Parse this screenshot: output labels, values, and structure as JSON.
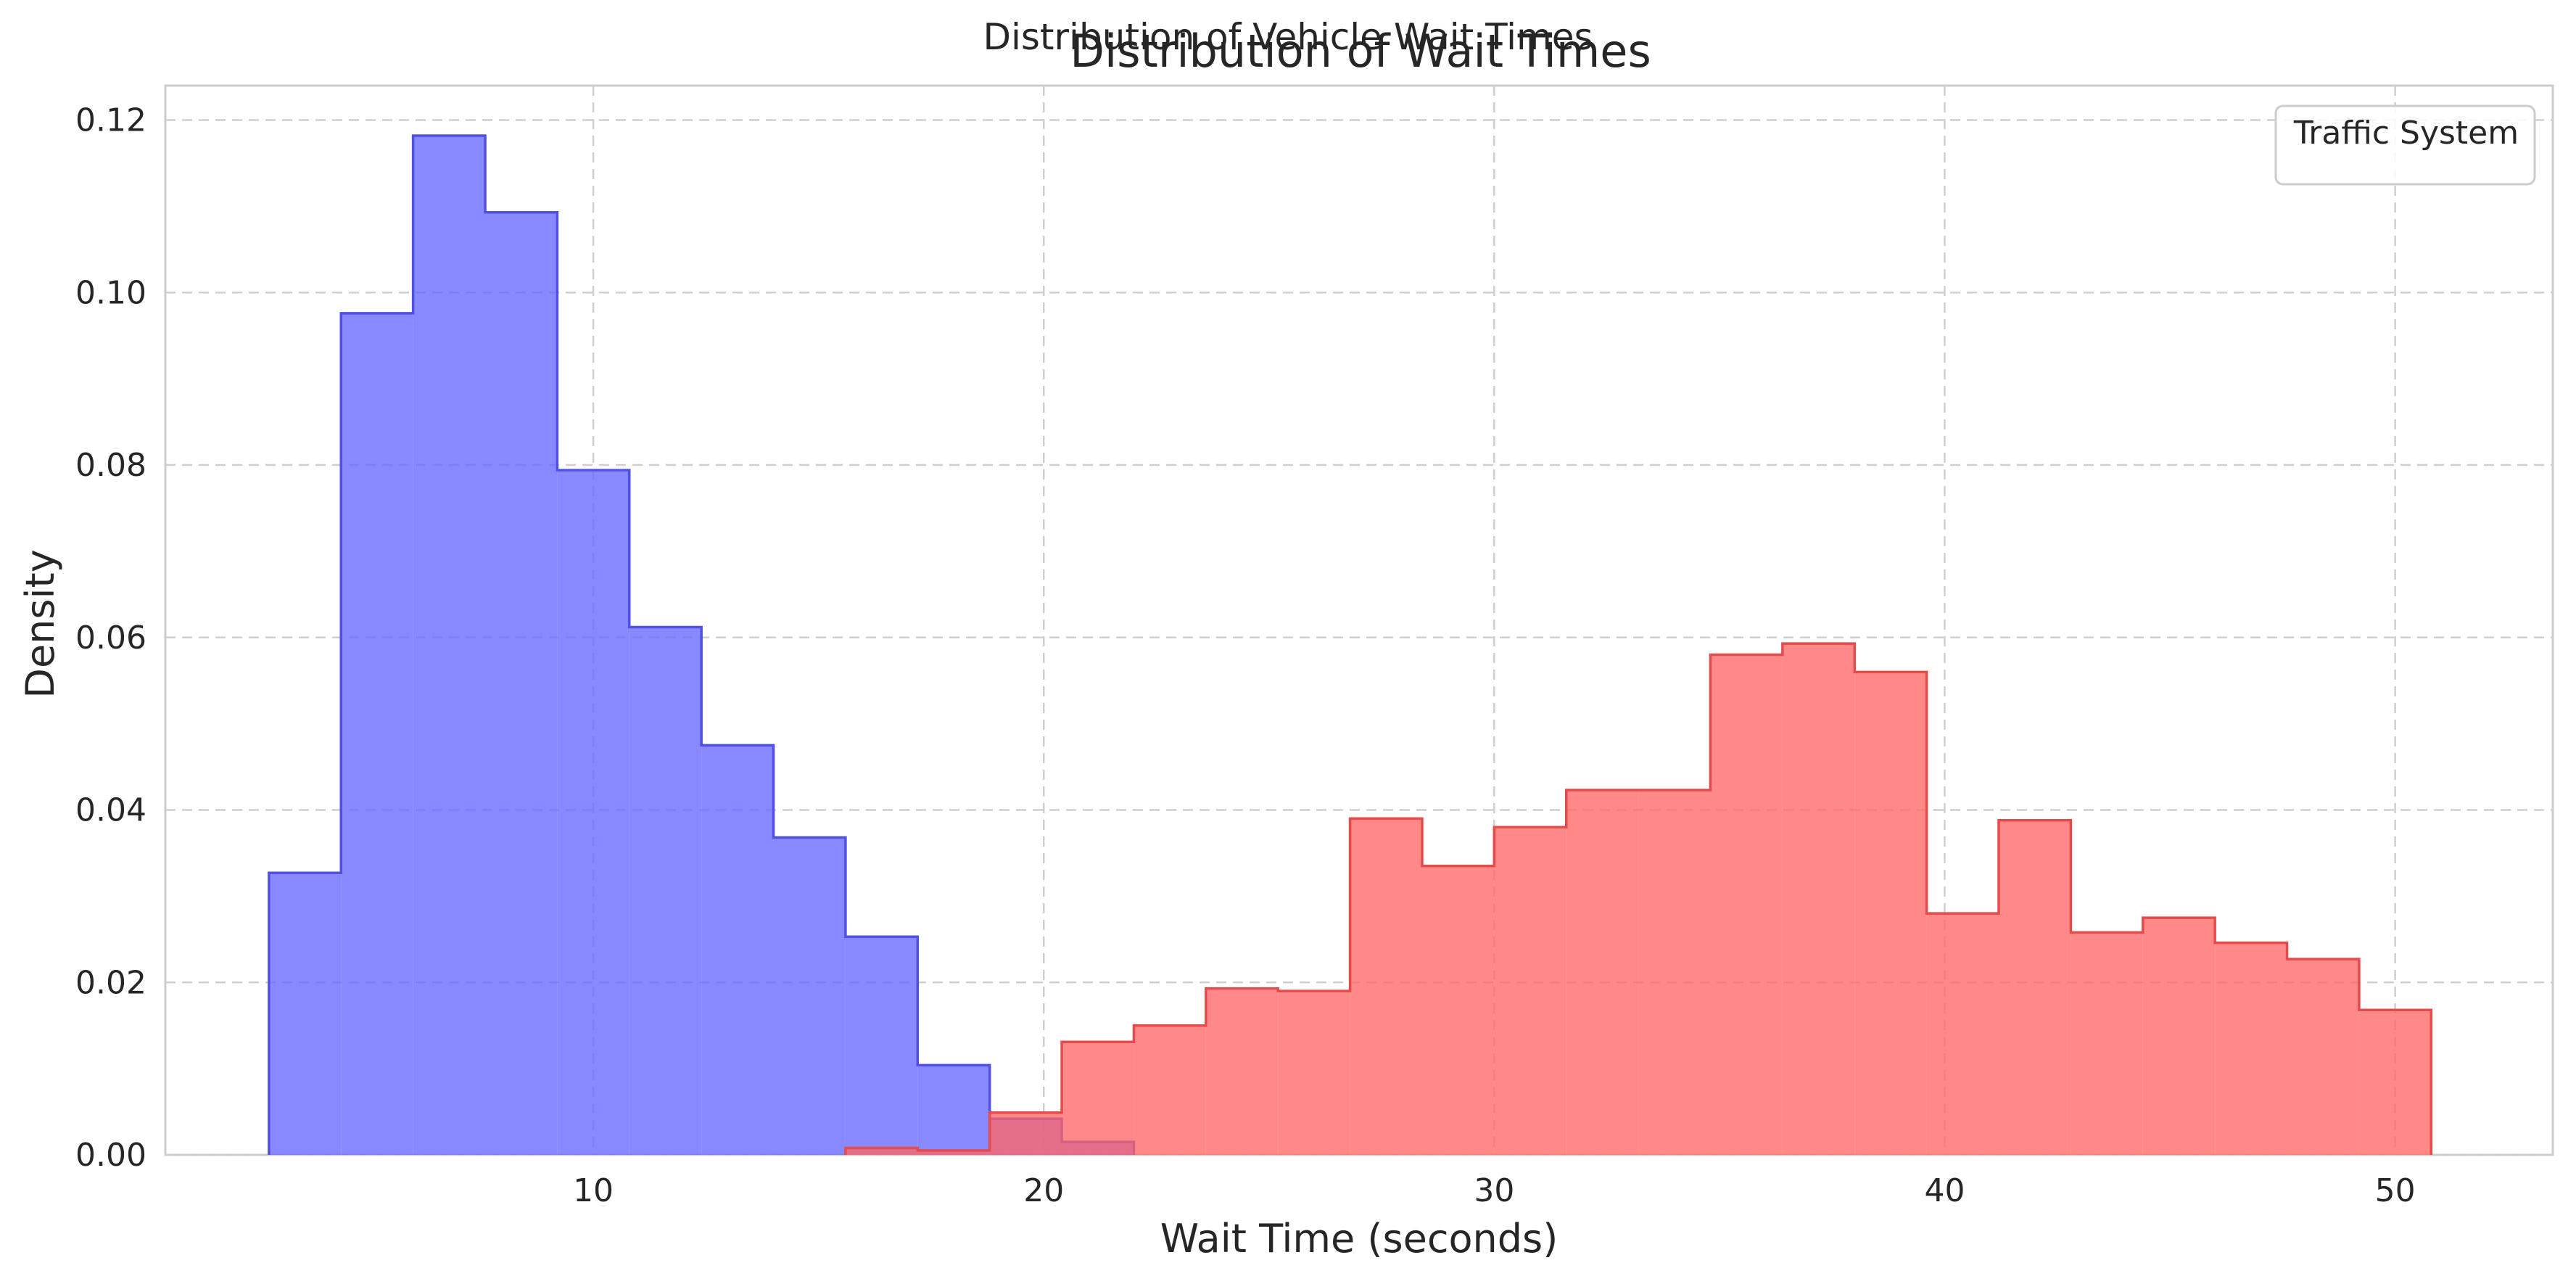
{
  "chart_data": {
    "type": "histogram",
    "suptitle": "Distribution of Vehicle Wait Times",
    "title": "Distribution of Wait Times",
    "xlabel": "Wait Time (seconds)",
    "ylabel": "Density",
    "xlim": [
      0.5,
      53.5
    ],
    "ylim": [
      0,
      0.124
    ],
    "xticks": [
      10,
      20,
      30,
      40,
      50
    ],
    "yticks": [
      0.0,
      0.02,
      0.04,
      0.06,
      0.08,
      0.1,
      0.12
    ],
    "ytick_labels": [
      "0.00",
      "0.02",
      "0.04",
      "0.06",
      "0.08",
      "0.10",
      "0.12"
    ],
    "grid": true,
    "legend": {
      "title": "Traffic System",
      "placement": "top-right",
      "entries": []
    },
    "series": [
      {
        "color": "#6666ff",
        "edge_color": "#5050e6",
        "bin_edges": [
          2.8,
          4.4,
          6.0,
          7.6,
          9.2,
          10.8,
          12.4,
          14.0,
          15.6,
          17.2,
          18.8,
          20.4,
          22.0
        ],
        "densities": [
          0.0327,
          0.0976,
          0.1182,
          0.1093,
          0.0794,
          0.0612,
          0.0475,
          0.0368,
          0.0253,
          0.0104,
          0.0042,
          0.0015
        ]
      },
      {
        "color": "#ff6666",
        "edge_color": "#e64b4b",
        "bin_edges": [
          15.6,
          17.2,
          18.8,
          20.4,
          22.0,
          23.6,
          25.2,
          26.8,
          28.4,
          30.0,
          31.6,
          33.2,
          34.8,
          36.4,
          38.0,
          39.6,
          41.2,
          42.8,
          44.4,
          46.0,
          47.6,
          49.2,
          50.8
        ],
        "densities": [
          0.0008,
          0.0005,
          0.0049,
          0.0131,
          0.015,
          0.0193,
          0.019,
          0.039,
          0.0335,
          0.038,
          0.0423,
          0.0423,
          0.058,
          0.0593,
          0.056,
          0.028,
          0.0388,
          0.0258,
          0.0275,
          0.0246,
          0.0227,
          0.0168
        ]
      }
    ]
  }
}
